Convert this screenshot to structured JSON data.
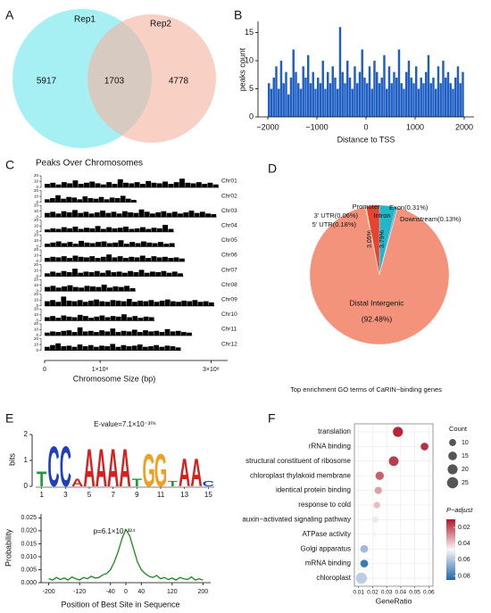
{
  "chart_data": [
    {
      "type": "venn",
      "panel": "A",
      "sets": [
        "Rep1",
        "Rep2"
      ],
      "values": [
        5917,
        1703,
        4778
      ],
      "colors": [
        "#6fe6ec",
        "#f6b3a0"
      ]
    },
    {
      "type": "histogram",
      "panel": "B",
      "xlabel": "Distance to TSS",
      "ylabel": "peaks count",
      "color": "#1f5fc4",
      "bins": [
        -2000,
        -1950,
        -1900,
        -1850,
        -1800,
        -1750,
        -1700,
        -1650,
        -1600,
        -1550,
        -1500,
        -1450,
        -1400,
        -1350,
        -1300,
        -1250,
        -1200,
        -1150,
        -1100,
        -1050,
        -1000,
        -950,
        -900,
        -850,
        -800,
        -750,
        -700,
        -650,
        -600,
        -550,
        -500,
        -450,
        -400,
        -350,
        -300,
        -250,
        -200,
        -150,
        -100,
        -50,
        0,
        50,
        100,
        150,
        200,
        250,
        300,
        350,
        400,
        450,
        500,
        550,
        600,
        650,
        700,
        750,
        800,
        850,
        900,
        950,
        1000,
        1050,
        1100,
        1150,
        1200,
        1250,
        1300,
        1350,
        1400,
        1450,
        1500,
        1550,
        1600,
        1650,
        1700,
        1750,
        1800,
        1850,
        1900,
        1950,
        2000
      ],
      "values": [
        6,
        5,
        7,
        9,
        5,
        10,
        6,
        8,
        4,
        7,
        12,
        8,
        6,
        5,
        9,
        7,
        11,
        6,
        8,
        5,
        7,
        6,
        10,
        5,
        8,
        6,
        9,
        7,
        5,
        16,
        8,
        6,
        10,
        7,
        5,
        9,
        6,
        8,
        12,
        7,
        6,
        9,
        5,
        10,
        8,
        6,
        7,
        11,
        5,
        9,
        6,
        8,
        7,
        12,
        6,
        5,
        8,
        10,
        7,
        6,
        9,
        5,
        7,
        6,
        8,
        11,
        6,
        7,
        5,
        9,
        6,
        10,
        7,
        8,
        6,
        5,
        7,
        9,
        6,
        8
      ],
      "xlim": [
        -2200,
        2200
      ],
      "xticks": [
        {
          "value": -2000,
          "label": "−2000"
        },
        {
          "value": -1000,
          "label": "−1000"
        },
        0,
        1000,
        2000
      ],
      "ylim": [
        0,
        17
      ],
      "yticks": [
        0,
        5,
        10,
        15
      ]
    },
    {
      "type": "tracks",
      "panel": "C",
      "title": "Peaks Over Chromosomes",
      "xlabel": "Chromosome Size (bp)",
      "color": "#000000",
      "xlim": [
        0,
        330000000
      ],
      "xticks": [
        0,
        {
          "value": 100000000,
          "label": "1×10⁸"
        },
        {
          "value": 300000000,
          "label": "3×10⁸"
        }
      ],
      "ylim": [
        0,
        20
      ],
      "yticks": [
        0,
        10,
        20
      ],
      "series": [
        {
          "name": "Chr01",
          "size": 314000000,
          "values": [
            6,
            8,
            5,
            9,
            7,
            12,
            6,
            8,
            10,
            7,
            5,
            9,
            6,
            14,
            8,
            7,
            9,
            6,
            11,
            8,
            7,
            10,
            6,
            9,
            15,
            8,
            7,
            9,
            6,
            8,
            5
          ]
        },
        {
          "name": "Chr02",
          "size": 166000000,
          "values": [
            5,
            7,
            12,
            6,
            9,
            8,
            5,
            10,
            7,
            6,
            9,
            5,
            8,
            7,
            11,
            6,
            4
          ]
        },
        {
          "name": "Chr03",
          "size": 310000000,
          "values": [
            7,
            9,
            6,
            10,
            8,
            12,
            7,
            9,
            6,
            8,
            11,
            7,
            9,
            6,
            10,
            8,
            7,
            13,
            9,
            6,
            8,
            10,
            7,
            9,
            6,
            8,
            11,
            7,
            9,
            6,
            5
          ]
        },
        {
          "name": "Chr04",
          "size": 233000000,
          "values": [
            4,
            6,
            5,
            8,
            6,
            9,
            5,
            7,
            6,
            10,
            5,
            8,
            6,
            7,
            9,
            5,
            6,
            8,
            5,
            7,
            6,
            12,
            5
          ]
        },
        {
          "name": "Chr05",
          "size": 235000000,
          "values": [
            5,
            7,
            9,
            6,
            8,
            5,
            10,
            7,
            6,
            8,
            9,
            6,
            7,
            11,
            5,
            8,
            6,
            9,
            7,
            6,
            8,
            5,
            6
          ]
        },
        {
          "name": "Chr06",
          "size": 253000000,
          "values": [
            6,
            8,
            7,
            9,
            6,
            10,
            8,
            7,
            9,
            6,
            8,
            12,
            7,
            9,
            6,
            8,
            7,
            10,
            6,
            9,
            7,
            8,
            6,
            7,
            5
          ]
        },
        {
          "name": "Chr07",
          "size": 250000000,
          "values": [
            5,
            8,
            6,
            9,
            7,
            13,
            6,
            8,
            7,
            9,
            6,
            10,
            7,
            8,
            6,
            9,
            7,
            11,
            6,
            8,
            7,
            9,
            6,
            8,
            5
          ]
        },
        {
          "name": "Chr08",
          "size": 164000000,
          "values": [
            7,
            9,
            6,
            8,
            10,
            7,
            6,
            9,
            8,
            7,
            11,
            6,
            8,
            7,
            9,
            5
          ]
        },
        {
          "name": "Chr09",
          "size": 306000000,
          "values": [
            8,
            10,
            7,
            16,
            9,
            8,
            10,
            7,
            9,
            11,
            8,
            7,
            10,
            9,
            8,
            12,
            7,
            9,
            8,
            10,
            7,
            9,
            11,
            8,
            7,
            9,
            8,
            10,
            7,
            8,
            6
          ]
        },
        {
          "name": "Chr10",
          "size": 198000000,
          "values": [
            6,
            8,
            5,
            9,
            7,
            6,
            10,
            8,
            5,
            7,
            9,
            6,
            8,
            7,
            11,
            6,
            8,
            5,
            7,
            6
          ]
        },
        {
          "name": "Chr11",
          "size": 266000000,
          "values": [
            5,
            7,
            6,
            8,
            9,
            6,
            14,
            7,
            8,
            6,
            9,
            7,
            12,
            6,
            8,
            7,
            10,
            6,
            9,
            7,
            8,
            6,
            11,
            7,
            8,
            6,
            5
          ]
        },
        {
          "name": "Chr12",
          "size": 246000000,
          "values": [
            6,
            9,
            12,
            7,
            8,
            6,
            10,
            7,
            9,
            6,
            8,
            7,
            11,
            6,
            9,
            7,
            8,
            10,
            6,
            7,
            9,
            6,
            8,
            7,
            5
          ]
        }
      ]
    },
    {
      "type": "pie",
      "panel": "D",
      "categories": [
        "Intron",
        "Exon",
        "Downstream",
        "Distal Intergenic",
        "5' UTR",
        "3' UTR",
        "Promoter"
      ],
      "values": [
        3.79,
        0.31,
        0.13,
        92.48,
        0.18,
        0.06,
        3.05
      ],
      "value_labels": [
        "3.79%",
        "(0.31%)",
        "(0.13%)",
        "(92.48%)",
        "(0.18%)",
        "(0.06%)",
        "3.05%"
      ],
      "colors": [
        "#22b6c8",
        "#3a8fd0",
        "#7d6fc4",
        "#f4937c",
        "#e8b23a",
        "#9bc53d",
        "#e8432f"
      ]
    },
    {
      "type": "logo",
      "panel": "E",
      "title": "E-value=7.1×10⁻³⁰⁶",
      "ylabel": "bits",
      "letters": [
        "T",
        "C",
        "C",
        "A",
        "A",
        "A",
        "A",
        "A",
        "T",
        "G",
        "G",
        "T",
        "A",
        "A",
        "C"
      ],
      "values": [
        0.6,
        1.6,
        1.6,
        0.3,
        1.5,
        1.5,
        1.5,
        1.5,
        0.3,
        1.3,
        1.3,
        0.2,
        1.1,
        1.1,
        0.2
      ],
      "letter_colors": {
        "A": "#d62020",
        "C": "#1f3fbf",
        "G": "#f0a020",
        "T": "#1e9a3a"
      },
      "xlim": [
        0.5,
        15.5
      ],
      "xticks": [
        1,
        3,
        5,
        7,
        9,
        11,
        13,
        15
      ],
      "ylim": [
        0,
        2
      ],
      "yticks": [
        0,
        1,
        2
      ]
    },
    {
      "type": "line",
      "title": "p=6.1×10⁻³²⁴",
      "xlabel": "Position of Best Site in Sequence",
      "ylabel": "Probability",
      "color": "#1a8a1a",
      "x": [
        -200,
        -190,
        -180,
        -170,
        -160,
        -150,
        -140,
        -130,
        -120,
        -110,
        -100,
        -90,
        -80,
        -70,
        -60,
        -50,
        -40,
        -30,
        -20,
        -10,
        0,
        10,
        20,
        30,
        40,
        50,
        60,
        70,
        80,
        90,
        100,
        110,
        120,
        130,
        140,
        150,
        160,
        170,
        180,
        190,
        200
      ],
      "values": [
        0.0015,
        0.001,
        0.002,
        0.0012,
        0.0018,
        0.001,
        0.0022,
        0.0015,
        0.001,
        0.002,
        0.0015,
        0.0025,
        0.0018,
        0.002,
        0.003,
        0.0035,
        0.005,
        0.008,
        0.012,
        0.017,
        0.0205,
        0.018,
        0.013,
        0.008,
        0.005,
        0.0035,
        0.0025,
        0.002,
        0.0028,
        0.0015,
        0.002,
        0.0012,
        0.0018,
        0.001,
        0.002,
        0.0015,
        0.0012,
        0.0022,
        0.001,
        0.0015,
        0.001
      ],
      "xlim": [
        -220,
        220
      ],
      "xticks": [
        -200,
        -120,
        -40,
        0,
        40,
        120,
        200
      ],
      "ylim": [
        0,
        0.0265
      ],
      "yticks": [
        {
          "value": 0,
          "label": "0.000"
        },
        0.005,
        {
          "value": 0.01,
          "label": "0.010"
        },
        0.015,
        {
          "value": 0.02,
          "label": "0.020"
        },
        0.025
      ]
    },
    {
      "type": "dot",
      "panel": "F",
      "title": "Top enrichment GO terms of CaRIN−binding genes",
      "xlabel": "GeneRatio",
      "categories": [
        "translation",
        "rRNA binding",
        "structural constituent of ribosome",
        "chloroplast thylakoid membrane",
        "identical protein binding",
        "response to cold",
        "auxin−activated signaling pathway",
        "ATPase activity",
        "Golgi apparatus",
        "mRNA binding",
        "chloroplast"
      ],
      "x": [
        0.038,
        0.057,
        0.035,
        0.025,
        0.024,
        0.023,
        0.022,
        0.021,
        0.014,
        0.014,
        0.012
      ],
      "counts": [
        20,
        12,
        19,
        14,
        11,
        9,
        8,
        7,
        12,
        12,
        25
      ],
      "values": [
        0.012,
        0.014,
        0.016,
        0.022,
        0.033,
        0.038,
        0.045,
        0.048,
        0.063,
        0.08,
        0.058
      ],
      "xlim": [
        0.007,
        0.063
      ],
      "xticks": [
        0.01,
        0.02,
        0.03,
        0.04,
        0.05,
        0.06
      ],
      "size_title": "Count",
      "size_ticks": [
        10,
        15,
        20,
        25
      ],
      "color_title": "P−adjust",
      "clim": [
        0.01,
        0.085
      ],
      "color_ticks": [
        0.02,
        0.04,
        0.06,
        0.08
      ],
      "colormap": [
        "#b2182b",
        "#f7f7f7",
        "#2166ac"
      ]
    }
  ]
}
